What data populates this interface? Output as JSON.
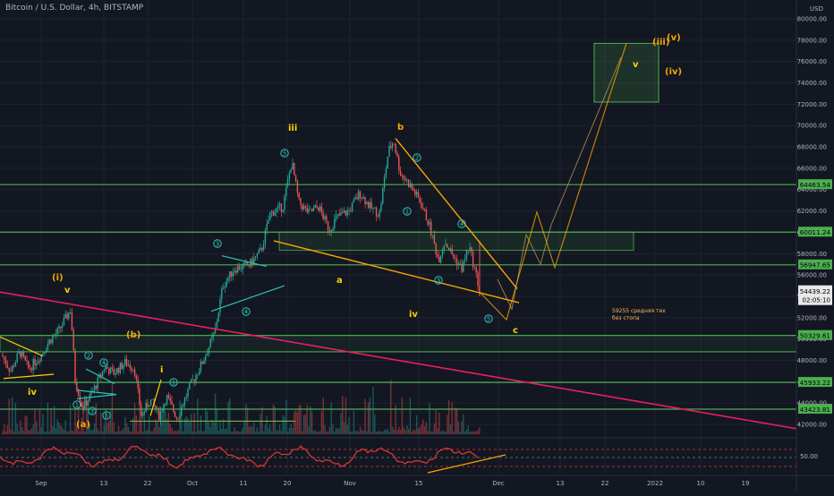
{
  "title": "Bitcoin / U.S. Dollar, 4h, BITSTAMP",
  "chart_data": {
    "type": "candlestick",
    "currency_label": "USD",
    "y_ticks": [
      42000,
      44000,
      46000,
      48000,
      50000,
      52000,
      54000,
      56000,
      58000,
      60000,
      62000,
      64000,
      66000,
      68000,
      70000,
      72000,
      74000,
      76000,
      78000,
      80000
    ],
    "y_tick_labels": [
      "42000.00",
      "44000.00",
      "46000.00",
      "48000.00",
      "50000.00",
      "52000.00",
      "54000.00",
      "56000.00",
      "58000.00",
      "60000.00",
      "62000.00",
      "64000.00",
      "66000.00",
      "68000.00",
      "70000.00",
      "72000.00",
      "74000.00",
      "76000.00",
      "78000.00",
      "80000.00"
    ],
    "x_tick_labels": [
      "Sep",
      "13",
      "22",
      "Oct",
      "11",
      "20",
      "Nov",
      "15",
      "Dec",
      "13",
      "22",
      "2022",
      "10",
      "19"
    ],
    "price_levels": [
      {
        "value": 64463.54,
        "label": "64463.54"
      },
      {
        "value": 60011.24,
        "label": "60011.24"
      },
      {
        "value": 56947.65,
        "label": "56947.65"
      },
      {
        "value": 50329.61,
        "label": "50329.61"
      },
      {
        "value": 45933.22,
        "label": "45933.22"
      },
      {
        "value": 43423.81,
        "label": "43423.81"
      }
    ],
    "last_price": {
      "value": 54439.22,
      "label": "54439.22",
      "countdown": "02:05:10"
    },
    "wave_labels": [
      "(i)",
      "v",
      "iv",
      "(a)",
      "(b)",
      "i",
      "iii",
      "a",
      "b",
      "iv",
      "c",
      "(iii)",
      "(v)",
      "(iv)",
      "v"
    ],
    "circled_labels": [
      "1",
      "2",
      "3",
      "4",
      "5"
    ],
    "annotation": [
      "59255 средняя тех",
      "без стопа"
    ],
    "oscillator_label": "50.00",
    "colors": {
      "up": "#26a69a",
      "down": "#ef5350",
      "level": "#4caf50",
      "trend": "#f7a600",
      "redline": "#e91e63",
      "osc": "#e53935",
      "wave": "#f5d300",
      "circle": "#2ec4b6"
    }
  }
}
